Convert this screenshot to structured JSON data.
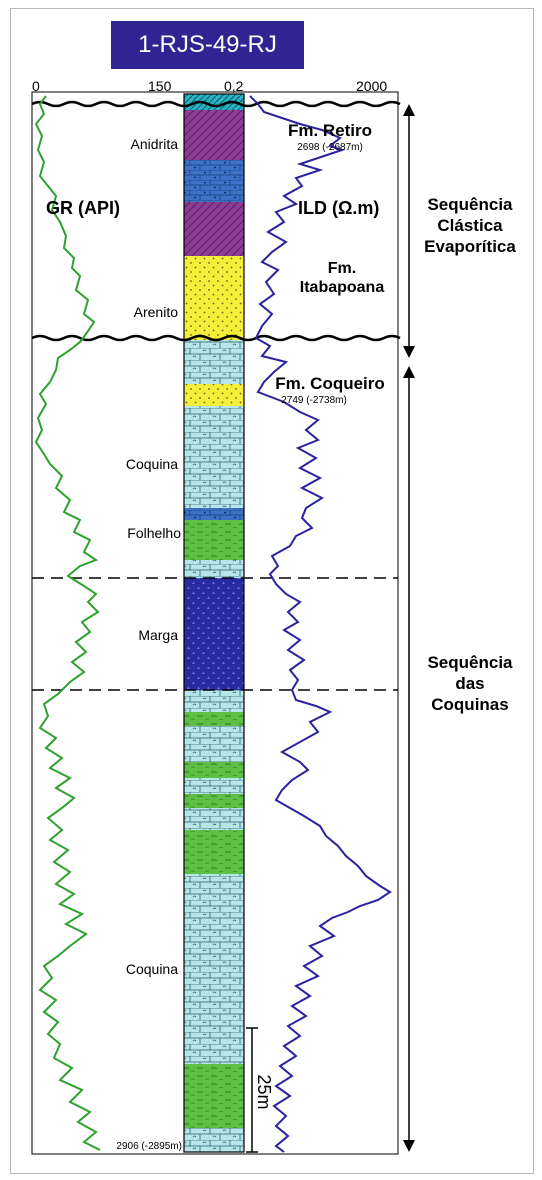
{
  "title": "1-RJS-49-RJ",
  "scale": {
    "gr_min": "0",
    "gr_max": "150",
    "ild_min": "0,2",
    "ild_max": "2000"
  },
  "curves": {
    "gr": "GR (API)",
    "ild": "ILD (Ω.m)"
  },
  "lithology_labels": [
    "Anidrita",
    "Arenito",
    "Coquina",
    "Folhelho",
    "Marga",
    "Coquina"
  ],
  "formations": {
    "retiro": {
      "name": "Fm. Retiro",
      "depth": "2698 (-2687m)"
    },
    "itabapoana": {
      "name_line1": "Fm.",
      "name_line2": "Itabapoana"
    },
    "coqueiro": {
      "name": "Fm. Coqueiro",
      "depth": "2749 (-2738m)"
    }
  },
  "sequences": {
    "upper": [
      "Sequência",
      "Clástica",
      "Evaporítica"
    ],
    "lower": [
      "Sequência",
      "das",
      "Coquinas"
    ]
  },
  "bottom_depth": "2906 (-2895m)",
  "scale_bar": "25m",
  "colors": {
    "title_bg": "#2f2492",
    "gr_curve": "#2ea12e",
    "ild_curve": "#2b22a0",
    "anidrita": "#8e3c97",
    "arenito": "#f5ef3c",
    "coquina": "#b7e6ea",
    "folhelho": "#5dbf43",
    "marga": "#2a2aa0",
    "limestone": "#3d72c8",
    "top_cap": "#29b3c4"
  }
}
